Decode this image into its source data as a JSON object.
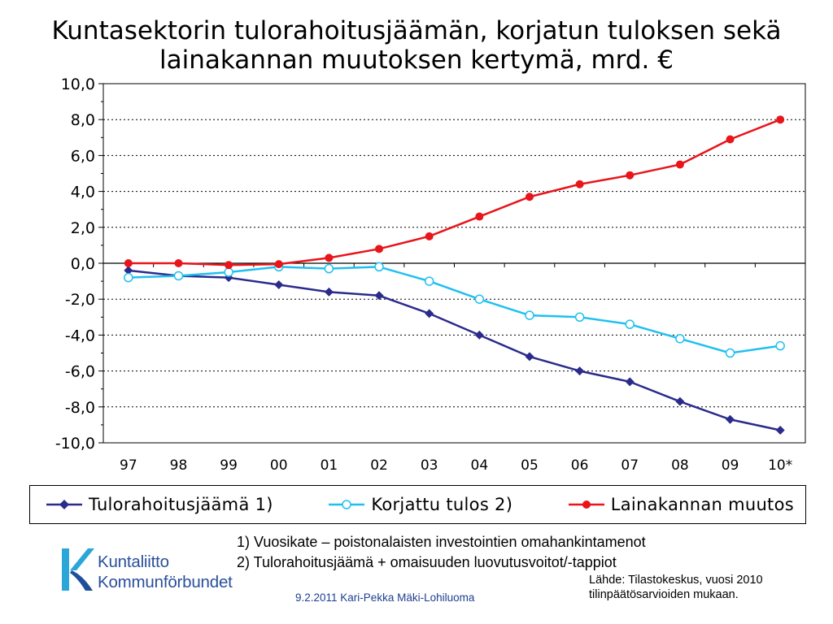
{
  "title": {
    "line1": "Kuntasektorin tulorahoitusjäämän, korjatun tuloksen sekä",
    "line2": "lainakannan muutoksen kertymä, mrd. €"
  },
  "chart_data": {
    "type": "line",
    "title": "Kuntasektorin tulorahoitusjäämän, korjatun tuloksen sekä lainakannan muutoksen kertymä, mrd. €",
    "categories": [
      "97",
      "98",
      "99",
      "00",
      "01",
      "02",
      "03",
      "04",
      "05",
      "06",
      "07",
      "08",
      "09",
      "10*"
    ],
    "y_ticks": [
      "10,0",
      "8,0",
      "6,0",
      "4,0",
      "2,0",
      "0,0",
      "-2,0",
      "-4,0",
      "-6,0",
      "-8,0",
      "-10,0"
    ],
    "ylim": [
      -10,
      10
    ],
    "grid": "horizontal dotted",
    "legend_position": "bottom",
    "series": [
      {
        "name": "Tulorahoitusjäämä 1)",
        "color": "#2b2b8c",
        "marker": "diamond",
        "values": [
          -0.4,
          -0.7,
          -0.8,
          -1.2,
          -1.6,
          -1.8,
          -2.8,
          -4.0,
          -5.2,
          -6.0,
          -6.6,
          -7.7,
          -8.7,
          -9.3
        ]
      },
      {
        "name": "Korjattu tulos 2)",
        "color": "#1fc0ef",
        "marker": "open-circle",
        "values": [
          -0.8,
          -0.7,
          -0.5,
          -0.2,
          -0.3,
          -0.2,
          -1.0,
          -2.0,
          -2.9,
          -3.0,
          -3.4,
          -4.2,
          -5.0,
          -4.6
        ]
      },
      {
        "name": "Lainakannan muutos",
        "color": "#e8151b",
        "marker": "filled-circle",
        "values": [
          0.0,
          0.0,
          -0.1,
          -0.05,
          0.3,
          0.8,
          1.5,
          2.6,
          3.7,
          4.4,
          4.9,
          5.5,
          6.9,
          8.0
        ]
      }
    ]
  },
  "notes": {
    "note1": "1) Vuosikate – poistonalaisten investointien omahankintamenot",
    "note2": "2) Tulorahoitusjäämä + omaisuuden luovutusvoitot/-tappiot"
  },
  "source": {
    "line1": "Lähde: Tilastokeskus, vuosi 2010",
    "line2": "tilinpäätösarvioiden mukaan."
  },
  "footer": "9.2.2011 Kari-Pekka Mäki-Lohiluoma",
  "logo": {
    "line1": "Kuntaliitto",
    "line2": "Kommunförbundet",
    "icon": "kuntaliitto-k-logo-icon"
  }
}
